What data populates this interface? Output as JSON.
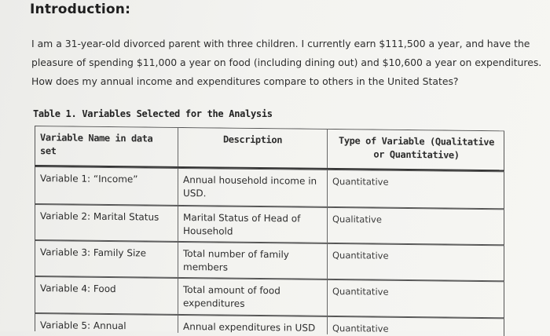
{
  "heading": "Introduction:",
  "paragraph_lines": [
    "I am a 31-year-old divorced parent with three children. I currently earn $111,500 a year, and have the",
    "pleasure of spending $11,000 a year on food (including dining out) and $10,600 a year on expenditures.",
    "How does my annual income and expenditures compare to others in the United States?"
  ],
  "table": {
    "caption": "Table 1. Variables Selected for the Analysis",
    "headers": {
      "name": "Variable Name in data set",
      "description": "Description",
      "type": "Type of Variable (Qualitative or Quantitative)"
    },
    "rows": [
      {
        "name": "Variable 1: “Income”",
        "description": "Annual household income in USD.",
        "type": "Quantitative"
      },
      {
        "name": "Variable 2: Marital Status",
        "description": "Marital Status of Head of Household",
        "type": "Qualitative"
      },
      {
        "name": "Variable 3: Family Size",
        "description": "Total number of family members",
        "type": "Quantitative"
      },
      {
        "name": "Variable 4: Food",
        "description": "Total amount of food expenditures",
        "type": "Quantitative"
      },
      {
        "name": "Variable 5: Annual",
        "description": "Annual expenditures in USD",
        "type": "Quantitative"
      }
    ]
  }
}
